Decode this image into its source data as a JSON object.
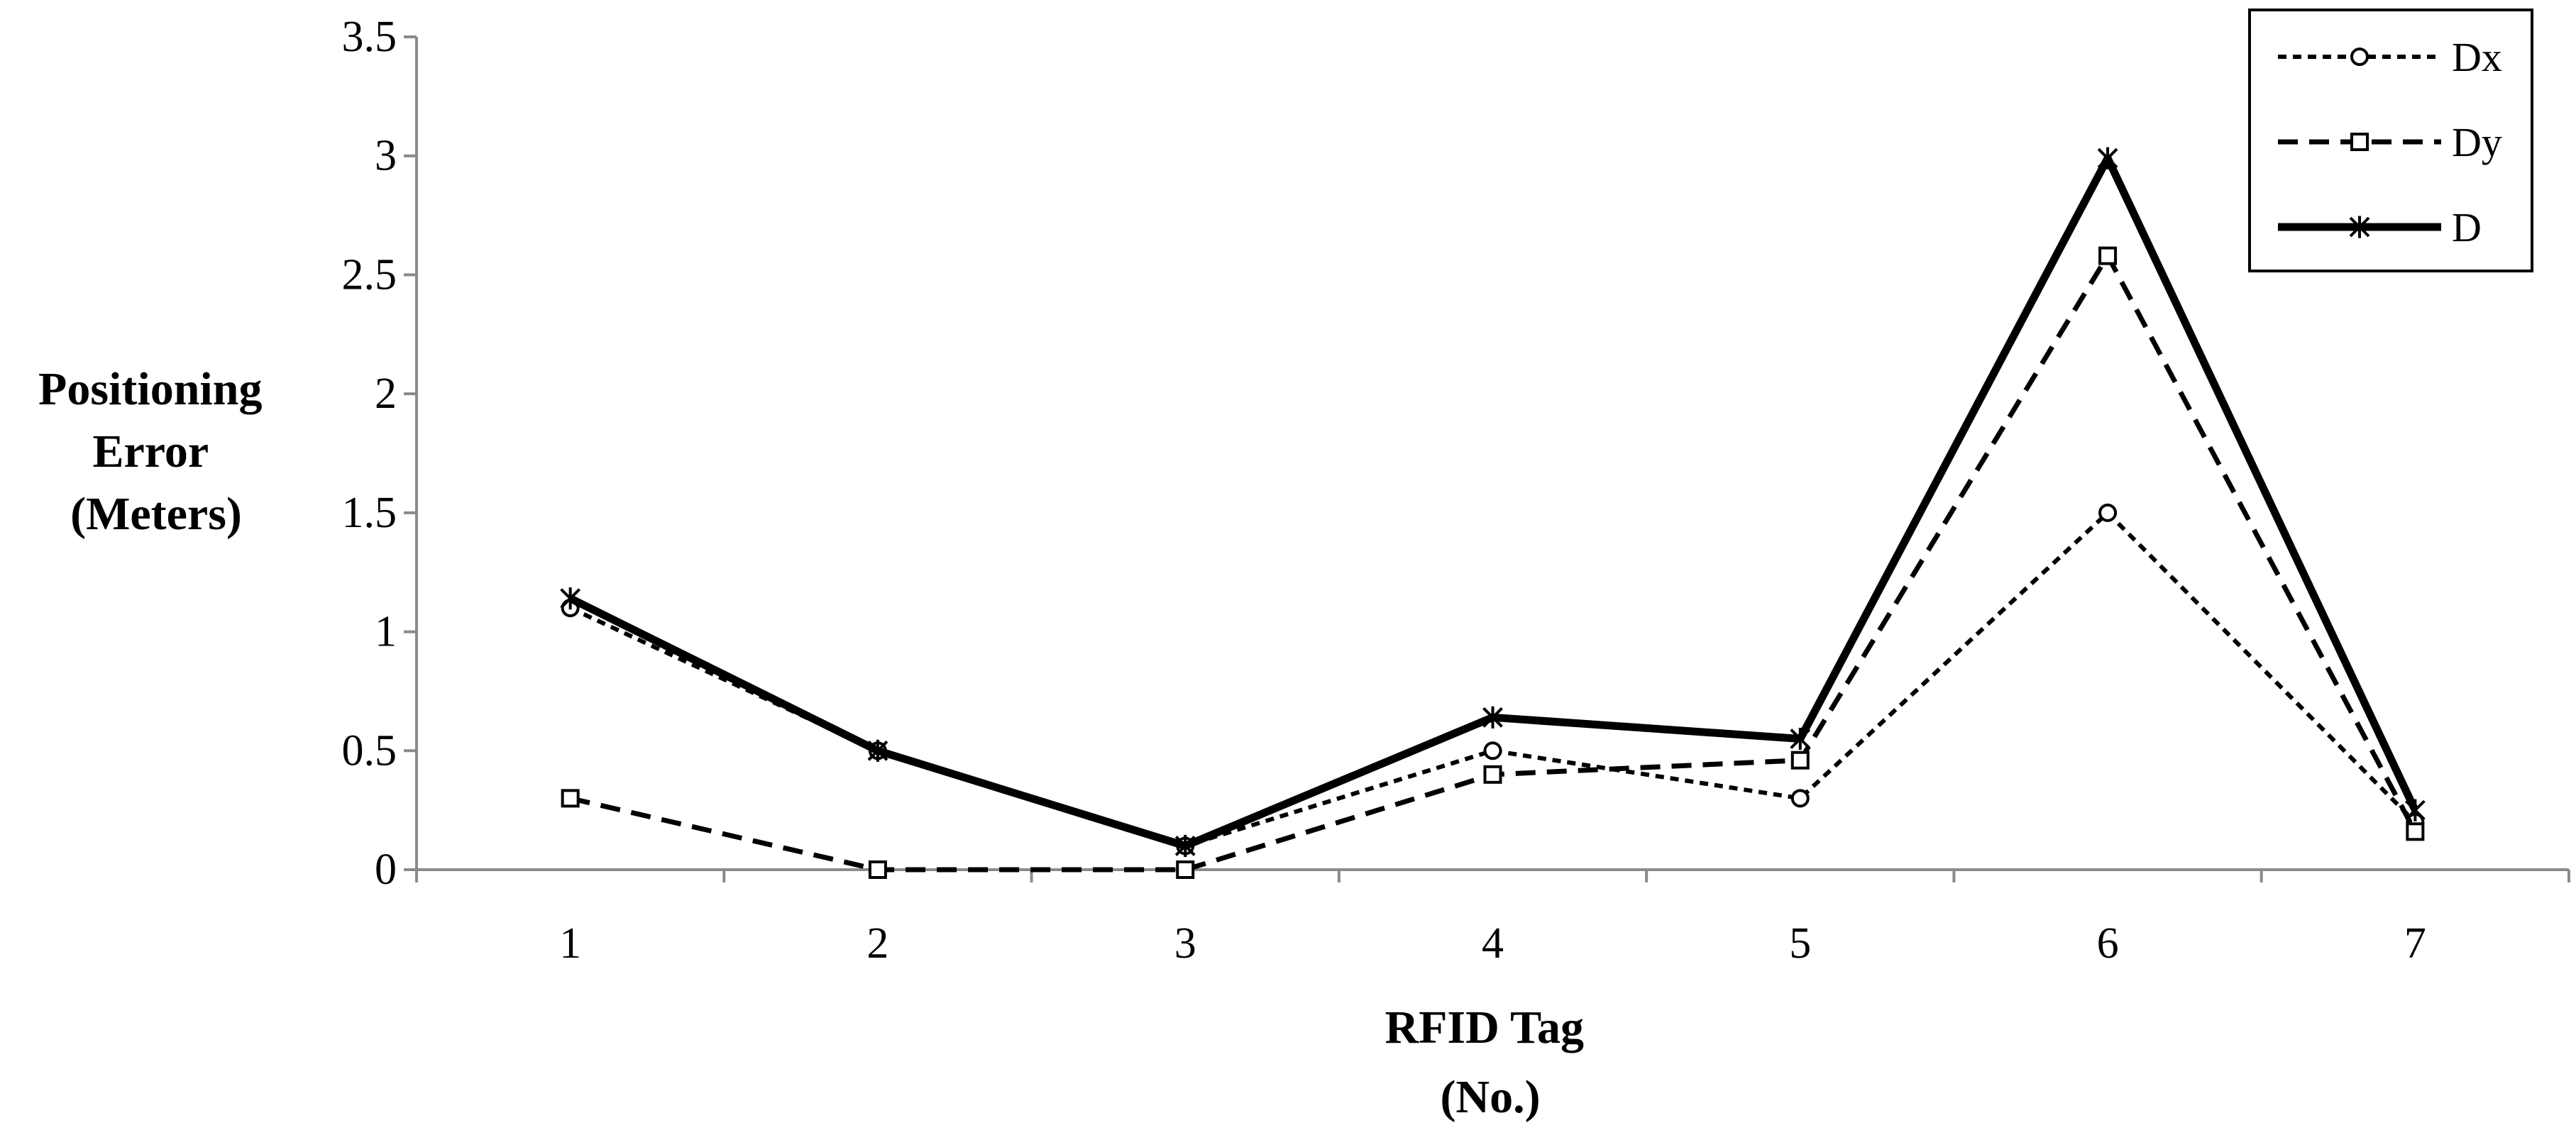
{
  "chart_data": {
    "type": "line",
    "title": "",
    "xlabel": [
      "RFID Tag",
      "(No.)"
    ],
    "ylabel": [
      "Positioning",
      "Error",
      "(Meters)"
    ],
    "categories": [
      "1",
      "2",
      "3",
      "4",
      "5",
      "6",
      "7"
    ],
    "ylim": [
      0,
      3.5
    ],
    "yticks": [
      "0",
      "0.5",
      "1",
      "1.5",
      "2",
      "2.5",
      "3",
      "3.5"
    ],
    "grid": false,
    "legend_position": "top-right",
    "series": [
      {
        "name": "Dx",
        "values": [
          1.1,
          0.5,
          0.1,
          0.5,
          0.3,
          1.5,
          0.2
        ],
        "line_style": "dotted",
        "marker": "circle",
        "color": "#000000"
      },
      {
        "name": "Dy",
        "values": [
          0.3,
          0.0,
          0.0,
          0.4,
          0.46,
          2.58,
          0.16
        ],
        "line_style": "dashed",
        "marker": "square",
        "color": "#000000"
      },
      {
        "name": "D",
        "values": [
          1.14,
          0.5,
          0.1,
          0.64,
          0.55,
          2.99,
          0.25
        ],
        "line_style": "solid",
        "marker": "asterisk",
        "color": "#000000"
      }
    ]
  }
}
